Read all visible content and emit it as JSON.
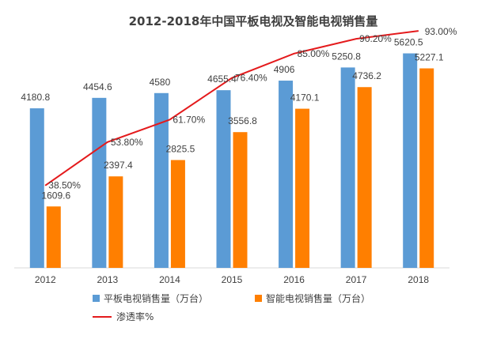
{
  "chart_data": {
    "type": "bar",
    "title": "2012-2018年中国平板电视及智能电视销售量",
    "categories": [
      "2012",
      "2013",
      "2014",
      "2015",
      "2016",
      "2017",
      "2018"
    ],
    "series": [
      {
        "name": "平板电视销售量（万台）",
        "type": "bar",
        "color": "#5B9BD5",
        "values": [
          4180.8,
          4454.6,
          4580,
          4655.4,
          4906,
          5250.8,
          5620.5
        ],
        "labels": [
          "4180.8",
          "4454.6",
          "4580",
          "4655.4",
          "4906",
          "5250.8",
          "5620.5"
        ]
      },
      {
        "name": "智能电视销售量（万台）",
        "type": "bar",
        "color": "#FF7F00",
        "values": [
          1609.6,
          2397.4,
          2825.5,
          3556.8,
          4170.1,
          4736.2,
          5227.1
        ],
        "labels": [
          "1609.6",
          "2397.4",
          "2825.5",
          "3556.8",
          "4170.1",
          "4736.2",
          "5227.1"
        ]
      },
      {
        "name": "渗透率%",
        "type": "line",
        "color": "#E41A1C",
        "values": [
          38.5,
          53.8,
          61.7,
          76.4,
          85.0,
          90.2,
          93.0
        ],
        "labels": [
          "38.50%",
          "53.80%",
          "61.70%",
          "76.40%",
          "85.00%",
          "90.20%",
          "93.00%"
        ]
      }
    ],
    "ylim": [
      0,
      6000
    ],
    "y2lim": [
      0,
      100
    ],
    "grid": false,
    "legend_position": "bottom"
  }
}
